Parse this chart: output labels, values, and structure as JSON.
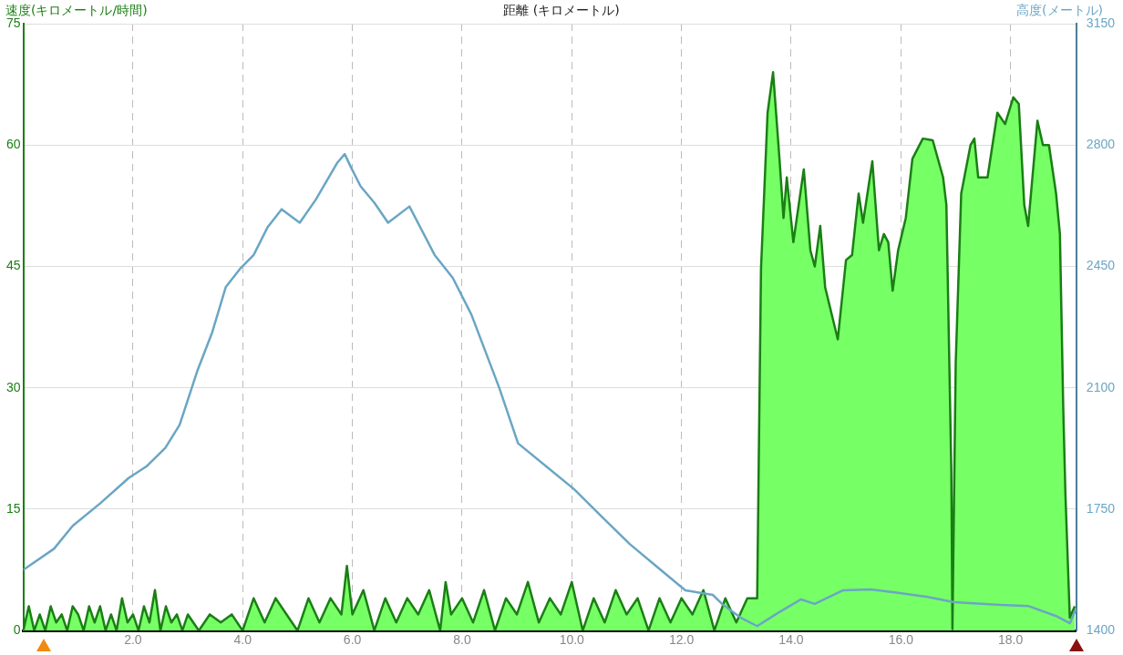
{
  "chart_data": {
    "type": "area",
    "xlabel": "距離 (キロメートル)",
    "ylabel": "速度(キロメートル/時間)",
    "y2label": "高度(メートル)",
    "xlim": [
      0,
      19.2
    ],
    "xticks": [
      {
        "value": 2,
        "label": "2.0"
      },
      {
        "value": 4,
        "label": "4.0"
      },
      {
        "value": 6,
        "label": "6.0"
      },
      {
        "value": 8,
        "label": "8.0"
      },
      {
        "value": 10,
        "label": "10.0"
      },
      {
        "value": 12,
        "label": "12.0"
      },
      {
        "value": 14,
        "label": "14.0"
      },
      {
        "value": 16,
        "label": "16.0"
      },
      {
        "value": 18,
        "label": "18.0"
      }
    ],
    "ylim": [
      0,
      75
    ],
    "yticks": [
      0,
      15,
      30,
      45,
      60,
      75
    ],
    "y2lim": [
      1400,
      3150
    ],
    "y2ticks": [
      1400,
      1750,
      2100,
      2450,
      2800,
      3150
    ],
    "grid": true,
    "legend": false,
    "series": [
      {
        "color": "#1a7f14",
        "x": [
          0,
          0.1,
          0.2,
          0.3,
          0.4,
          0.5,
          0.6,
          0.7,
          0.8,
          0.9,
          1.0,
          1.1,
          1.2,
          1.3,
          1.4,
          1.5,
          1.6,
          1.7,
          1.8,
          1.9,
          2.0,
          2.1,
          2.2,
          2.3,
          2.4,
          2.5,
          2.6,
          2.7,
          2.8,
          2.9,
          3.0,
          3.2,
          3.4,
          3.6,
          3.8,
          4.0,
          4.2,
          4.4,
          4.6,
          4.8,
          5.0,
          5.2,
          5.4,
          5.6,
          5.8,
          5.9,
          6.0,
          6.2,
          6.4,
          6.6,
          6.8,
          7.0,
          7.2,
          7.4,
          7.6,
          7.7,
          7.8,
          8.0,
          8.2,
          8.4,
          8.6,
          8.8,
          9.0,
          9.2,
          9.4,
          9.6,
          9.8,
          10.0,
          10.2,
          10.4,
          10.6,
          10.8,
          11.0,
          11.2,
          11.4,
          11.6,
          11.8,
          12.0,
          12.2,
          12.4,
          12.6,
          12.8,
          13.0,
          13.2,
          13.38,
          13.45,
          13.57,
          13.67,
          13.79,
          13.86,
          13.92,
          14.04,
          14.23,
          14.35,
          14.43,
          14.53,
          14.62,
          14.85,
          15.0,
          15.11,
          15.23,
          15.31,
          15.48,
          15.6,
          15.69,
          15.77,
          15.85,
          15.95,
          16.09,
          16.21,
          16.4,
          16.58,
          16.77,
          16.83,
          16.92,
          16.94,
          17.0,
          17.1,
          17.27,
          17.34,
          17.41,
          17.58,
          17.76,
          17.9,
          18.05,
          18.15,
          18.25,
          18.32,
          18.49,
          18.59,
          18.7,
          18.83,
          18.9,
          18.96,
          19.0,
          19.08,
          19.17
        ],
        "values": [
          0,
          3,
          0,
          2,
          0,
          3,
          1,
          2,
          0,
          3,
          2,
          0,
          3,
          1,
          3,
          0,
          2,
          0,
          4,
          1,
          2,
          0,
          3,
          1,
          5,
          0,
          3,
          1,
          2,
          0,
          2,
          0,
          2,
          1,
          2,
          0,
          4,
          1,
          4,
          2,
          0,
          4,
          1,
          4,
          2,
          8,
          2,
          5,
          0,
          4,
          1,
          4,
          2,
          5,
          0,
          6,
          2,
          4,
          1,
          5,
          0,
          4,
          2,
          6,
          1,
          4,
          2,
          6,
          0,
          4,
          1,
          5,
          2,
          4,
          0,
          4,
          1,
          4,
          2,
          5,
          0,
          4,
          1,
          4,
          4,
          44.7,
          64,
          69,
          58,
          51,
          56,
          48,
          57,
          47,
          45,
          50,
          42.4,
          36,
          45.8,
          46.4,
          54,
          50.4,
          58,
          47,
          49,
          48,
          42,
          47,
          51,
          58.3,
          60.8,
          60.6,
          56,
          52.6,
          19.7,
          0.2,
          33,
          54,
          60,
          60.8,
          56,
          56,
          64,
          62.6,
          65.9,
          65.1,
          52.6,
          50,
          63,
          60,
          60,
          54,
          49,
          27.7,
          16.9,
          1.6,
          3
        ]
      },
      {
        "type": "line",
        "axis": "y2",
        "color": "#6aa6c4",
        "x": [
          0,
          0.56,
          0.9,
          1.41,
          1.92,
          2.25,
          2.59,
          2.85,
          3.18,
          3.44,
          3.69,
          3.95,
          4.2,
          4.45,
          4.71,
          5.04,
          5.33,
          5.72,
          5.86,
          5.98,
          6.15,
          6.4,
          6.65,
          7.04,
          7.5,
          7.83,
          8.17,
          8.68,
          9.02,
          9.53,
          10.04,
          10.55,
          11.06,
          11.56,
          12.07,
          12.57,
          12.74,
          13.08,
          13.38,
          13.75,
          14.18,
          14.43,
          14.94,
          15.45,
          15.95,
          16.46,
          16.97,
          17.82,
          18.32,
          18.83,
          19.08,
          19.2
        ],
        "values": [
          1575,
          1636,
          1702,
          1768,
          1840,
          1874,
          1927,
          1993,
          2152,
          2258,
          2390,
          2443,
          2483,
          2562,
          2615,
          2576,
          2642,
          2748,
          2774,
          2734,
          2681,
          2634,
          2576,
          2623,
          2483,
          2417,
          2311,
          2099,
          1940,
          1874,
          1808,
          1728,
          1649,
          1583,
          1516,
          1503,
          1477,
          1437,
          1413,
          1450,
          1490,
          1477,
          1516,
          1519,
          1509,
          1498,
          1482,
          1474,
          1471,
          1442,
          1421,
          1464
        ]
      }
    ]
  }
}
